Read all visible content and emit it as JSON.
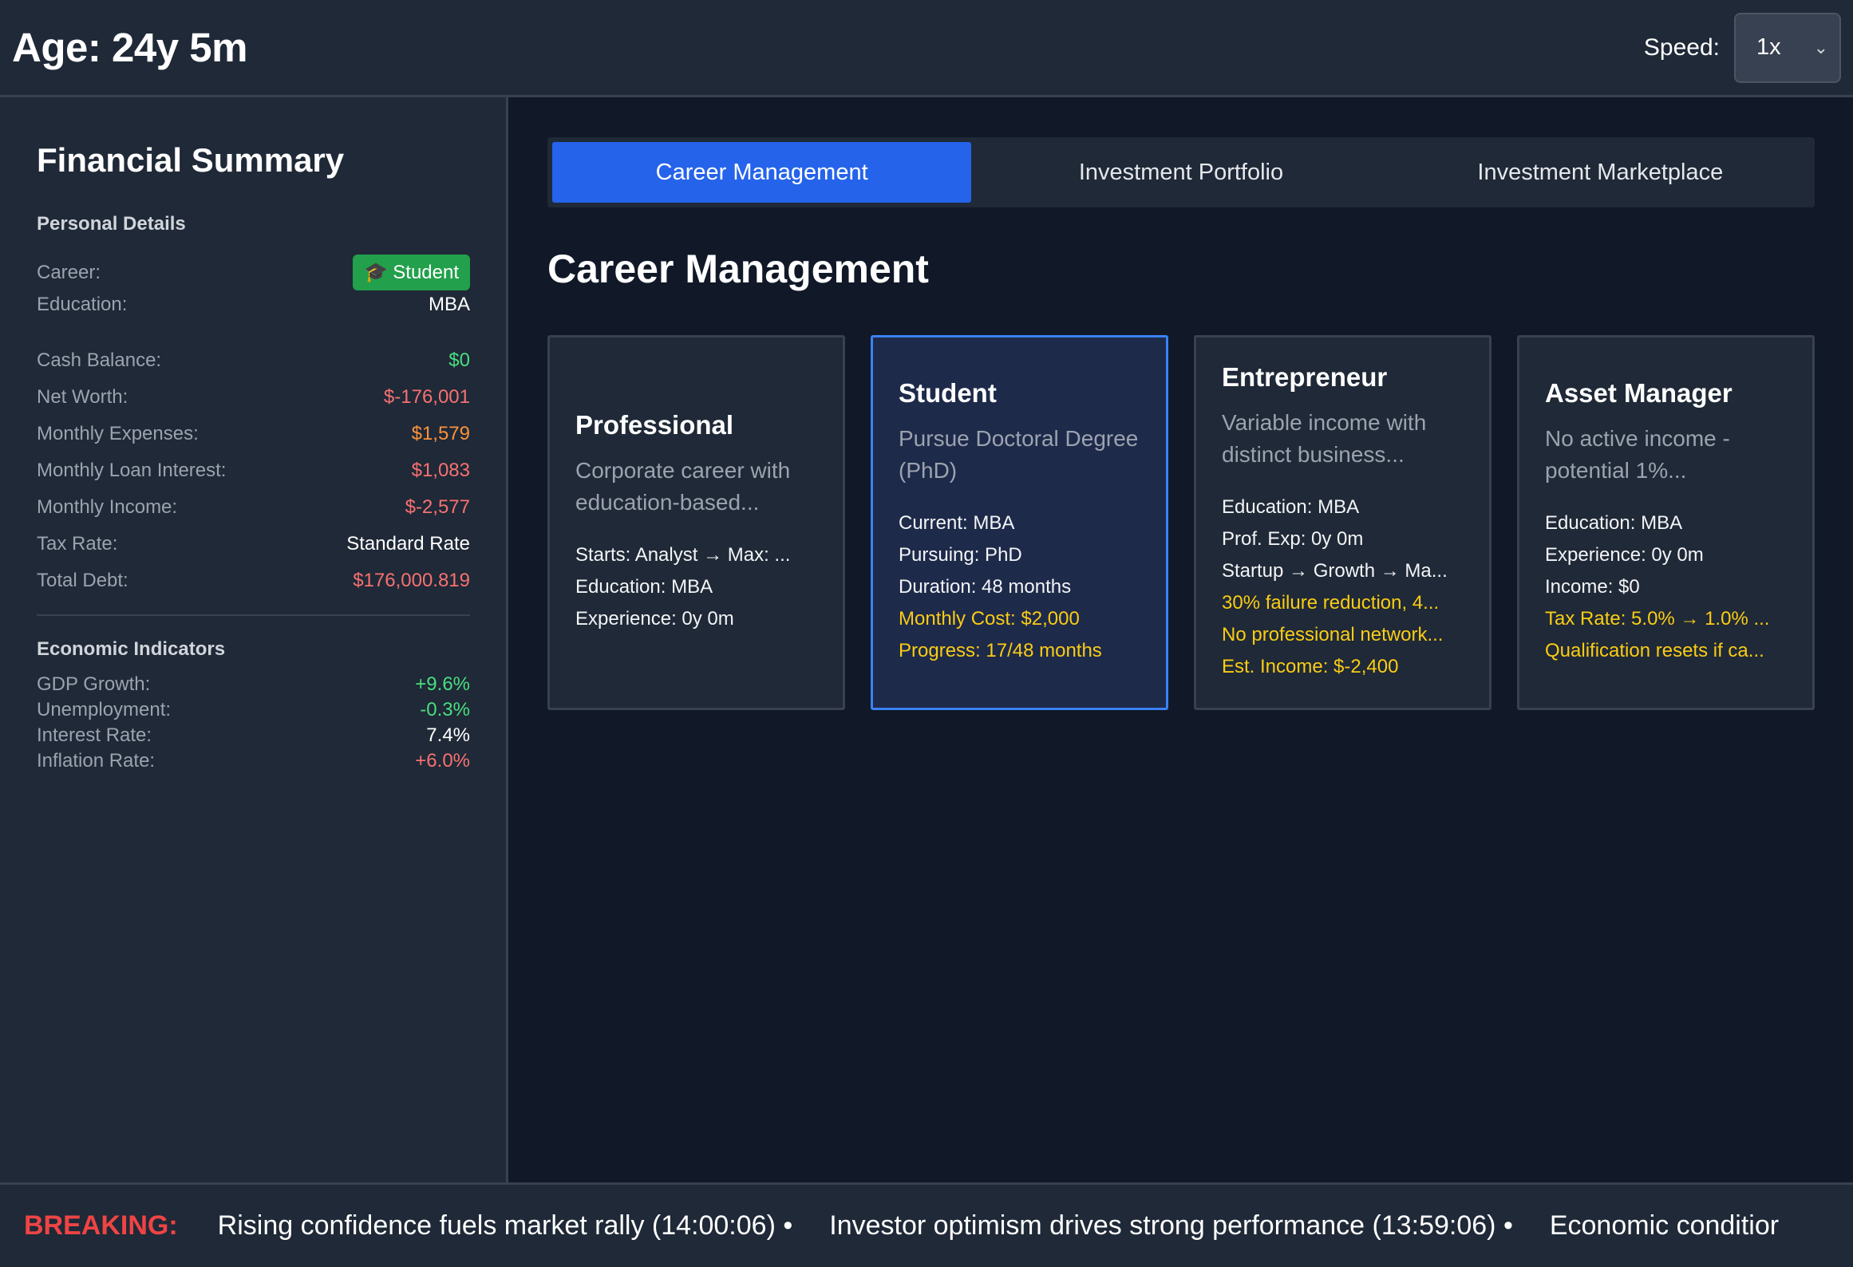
{
  "header": {
    "age": "Age: 24y 5m",
    "speed_label": "Speed:",
    "speed_value": "1x"
  },
  "sidebar": {
    "title": "Financial Summary",
    "personal_heading": "Personal Details",
    "career_label": "Career:",
    "career_badge": "Student",
    "career_icon": "graduation-cap-icon",
    "education_label": "Education:",
    "education_value": "MBA",
    "stats": [
      {
        "label": "Cash Balance:",
        "value": "$0",
        "color": "#4ade80"
      },
      {
        "label": "Net Worth:",
        "value": "$-176,001",
        "color": "#f87171"
      },
      {
        "label": "Monthly Expenses:",
        "value": "$1,579",
        "color": "#fb923c"
      },
      {
        "label": "Monthly Loan Interest:",
        "value": "$1,083",
        "color": "#f87171"
      },
      {
        "label": "Monthly Income:",
        "value": "$-2,577",
        "color": "#f87171"
      },
      {
        "label": "Tax Rate:",
        "value": "Standard Rate",
        "color": "#ffffff"
      },
      {
        "label": "Total Debt:",
        "value": "$176,000.819",
        "color": "#f87171"
      }
    ],
    "econ_heading": "Economic Indicators",
    "econ": [
      {
        "label": "GDP Growth:",
        "value": "+9.6%",
        "color": "#4ade80"
      },
      {
        "label": "Unemployment:",
        "value": "-0.3%",
        "color": "#4ade80"
      },
      {
        "label": "Interest Rate:",
        "value": "7.4%",
        "color": "#ffffff"
      },
      {
        "label": "Inflation Rate:",
        "value": "+6.0%",
        "color": "#f87171"
      }
    ]
  },
  "tabs": [
    {
      "label": "Career Management",
      "active": true
    },
    {
      "label": "Investment Portfolio",
      "active": false
    },
    {
      "label": "Investment Marketplace",
      "active": false
    }
  ],
  "main": {
    "title": "Career Management",
    "cards": [
      {
        "title": "Professional",
        "desc": "Corporate career with education-based...",
        "lines": [
          {
            "text": "Starts: Analyst → Max: ...",
            "warn": false
          },
          {
            "text": "Education: MBA",
            "warn": false
          },
          {
            "text": "Experience: 0y 0m",
            "warn": false
          }
        ]
      },
      {
        "title": "Student",
        "desc": "Pursue Doctoral Degree (PhD)",
        "selected": true,
        "lines": [
          {
            "text": "Current: MBA",
            "warn": false
          },
          {
            "text": "Pursuing: PhD",
            "warn": false
          },
          {
            "text": "Duration: 48 months",
            "warn": false
          },
          {
            "text": "Monthly Cost: $2,000",
            "warn": true
          },
          {
            "text": "Progress: 17/48 months",
            "warn": true
          }
        ]
      },
      {
        "title": "Entrepreneur",
        "desc": "Variable income with distinct business...",
        "lines": [
          {
            "text": "Education: MBA",
            "warn": false
          },
          {
            "text": "Prof. Exp: 0y 0m",
            "warn": false
          },
          {
            "text": "Startup → Growth → Ma...",
            "warn": false
          },
          {
            "text": "30% failure reduction, 4...",
            "warn": true
          },
          {
            "text": "No professional network...",
            "warn": true
          },
          {
            "text": "Est. Income: $-2,400",
            "warn": true
          }
        ]
      },
      {
        "title": "Asset Manager",
        "desc": "No active income - potential 1%...",
        "lines": [
          {
            "text": "Education: MBA",
            "warn": false
          },
          {
            "text": "Experience: 0y 0m",
            "warn": false
          },
          {
            "text": "Income: $0",
            "warn": false
          },
          {
            "text": "Tax Rate: 5.0% → 1.0% ...",
            "warn": true
          },
          {
            "text": "Qualification resets if ca...",
            "warn": true
          }
        ]
      }
    ]
  },
  "ticker": {
    "label": "BREAKING:",
    "items": [
      "Rising confidence fuels market rally (14:00:06) •",
      "Investor optimism drives strong performance (13:59:06) •",
      "Economic conditior"
    ]
  }
}
